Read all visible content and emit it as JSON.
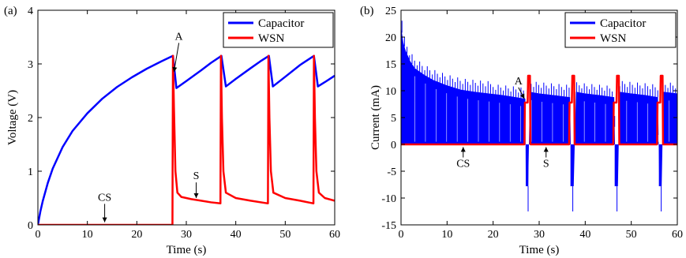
{
  "chart_data": [
    {
      "type": "line",
      "panel_label": "(a)",
      "xlabel": "Time (s)",
      "ylabel": "Voltage (V)",
      "xlim": [
        0,
        60
      ],
      "ylim": [
        0,
        4
      ],
      "xticks": [
        0,
        10,
        20,
        30,
        40,
        50,
        60
      ],
      "yticks": [
        0,
        1,
        2,
        3,
        4
      ],
      "legend_position": "top-right",
      "colors": {
        "Capacitor": "#0000ff",
        "WSN": "#ff0000"
      },
      "series": [
        {
          "name": "Capacitor",
          "x": [
            0,
            0.5,
            1,
            2,
            3,
            5,
            7,
            10,
            13,
            16,
            19,
            22,
            25,
            27.3,
            28,
            30,
            33,
            35,
            37.1,
            38,
            40,
            43,
            45,
            46.7,
            47.5,
            50,
            53,
            55.8,
            56.6,
            58,
            60
          ],
          "y": [
            0,
            0.25,
            0.45,
            0.78,
            1.05,
            1.45,
            1.75,
            2.08,
            2.35,
            2.57,
            2.75,
            2.91,
            3.05,
            3.15,
            2.55,
            2.68,
            2.88,
            3.02,
            3.15,
            2.58,
            2.72,
            2.92,
            3.05,
            3.15,
            2.58,
            2.76,
            2.98,
            3.15,
            2.58,
            2.66,
            2.78
          ]
        },
        {
          "name": "WSN",
          "x": [
            0,
            27.2,
            27.3,
            27.5,
            27.8,
            28.2,
            29,
            31,
            33,
            35,
            36.9,
            37.0,
            37.2,
            37.5,
            38,
            40,
            43,
            46.5,
            46.6,
            46.8,
            47.1,
            47.6,
            50,
            53,
            55.7,
            55.8,
            56,
            56.3,
            56.8,
            58,
            60
          ],
          "y": [
            0,
            0,
            3.15,
            2.2,
            1.0,
            0.6,
            0.52,
            0.48,
            0.45,
            0.42,
            0.4,
            3.15,
            2.0,
            1.0,
            0.6,
            0.5,
            0.45,
            0.4,
            3.15,
            2.0,
            1.0,
            0.6,
            0.5,
            0.45,
            0.4,
            3.15,
            2.0,
            1.0,
            0.6,
            0.5,
            0.45
          ]
        }
      ],
      "annotations": [
        {
          "text": "A",
          "x": 28.5,
          "y": 3.45,
          "arrow_to": [
            27.5,
            2.85
          ]
        },
        {
          "text": "S",
          "x": 32,
          "y": 0.85,
          "arrow_to": [
            32,
            0.5
          ]
        },
        {
          "text": "CS",
          "x": 13.5,
          "y": 0.45,
          "arrow_to": [
            13.5,
            0.05
          ]
        }
      ]
    },
    {
      "type": "line",
      "panel_label": "(b)",
      "xlabel": "Time (s)",
      "ylabel": "Current (mA)",
      "xlim": [
        0,
        60
      ],
      "ylim": [
        -15,
        25
      ],
      "xticks": [
        0,
        10,
        20,
        30,
        40,
        50,
        60
      ],
      "yticks": [
        -15,
        -10,
        -5,
        0,
        5,
        10,
        15,
        20,
        25
      ],
      "legend_position": "top-right",
      "colors": {
        "Capacitor": "#0000ff",
        "WSN": "#ff0000"
      },
      "series": [
        {
          "name": "Capacitor",
          "x": [
            0,
            0.5,
            1,
            2,
            3,
            5,
            7,
            10,
            13,
            16,
            19,
            22,
            25,
            27,
            27.1,
            27.6,
            28,
            30,
            33,
            36.7,
            37,
            37.5,
            38,
            40,
            43,
            46.3,
            46.6,
            47.1,
            47.5,
            50,
            53,
            55.8,
            56.1,
            56.6,
            57,
            60
          ],
          "y": [
            22,
            19,
            17.5,
            15.5,
            14.2,
            13,
            12,
            11,
            10.2,
            9.8,
            9.5,
            9.2,
            8.8,
            8.5,
            -7.8,
            -7.8,
            9.8,
            9.5,
            9.2,
            8.8,
            -7.8,
            -7.8,
            9.8,
            9.5,
            9.2,
            8.8,
            -7.8,
            -7.8,
            9.8,
            9.5,
            9.2,
            8.8,
            -7.8,
            -7.8,
            9.8,
            9.5
          ]
        },
        {
          "name": "WSN",
          "x": [
            0,
            26.8,
            26.9,
            27.5,
            27.6,
            28,
            28.1,
            36.5,
            36.6,
            37.1,
            37.2,
            37.6,
            37.7,
            46.1,
            46.2,
            46.8,
            46.9,
            47.3,
            47.4,
            55.6,
            55.7,
            56.3,
            56.4,
            56.8,
            56.9,
            60
          ],
          "y": [
            0,
            0,
            7.8,
            7.8,
            12.8,
            12.8,
            0,
            0,
            7.8,
            7.8,
            12.8,
            12.8,
            0,
            0,
            7.8,
            7.8,
            12.8,
            12.8,
            0,
            0,
            7.8,
            7.8,
            12.8,
            12.8,
            0,
            0
          ]
        }
      ],
      "annotations": [
        {
          "text": "A",
          "x": 25.5,
          "y": 11.2,
          "arrow_to": [
            26.8,
            8.5
          ]
        },
        {
          "text": "S",
          "x": 31.5,
          "y": -4.2,
          "arrow_to": [
            31.5,
            -0.5
          ]
        },
        {
          "text": "CS",
          "x": 13.5,
          "y": -4.2,
          "arrow_to": [
            13.5,
            -0.5
          ]
        }
      ]
    }
  ]
}
